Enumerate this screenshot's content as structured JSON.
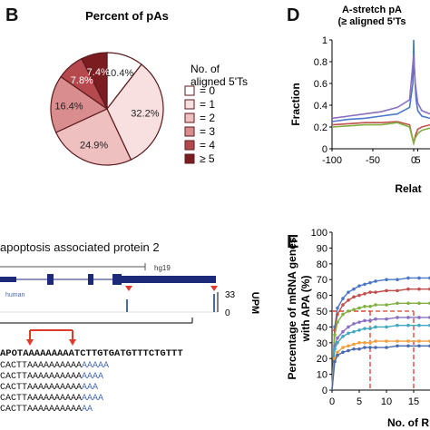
{
  "panel_letters": {
    "b": "B",
    "d": "D",
    "e": "E"
  },
  "chart_data": [
    {
      "type": "pie",
      "panel": "B",
      "title": "Percent of pAs",
      "legend_title": [
        "No. of",
        "aligned 5'Ts"
      ],
      "slices": [
        {
          "label": "= 0",
          "value": 10.4,
          "display": "10.4%",
          "color": "#ffffff"
        },
        {
          "label": "= 1",
          "value": 32.2,
          "display": "32.2%",
          "color": "#f9e0e0"
        },
        {
          "label": "= 2",
          "value": 24.9,
          "display": "24.9%",
          "color": "#efc0c0"
        },
        {
          "label": "= 3",
          "value": 16.4,
          "display": "16.4%",
          "color": "#d98d8f"
        },
        {
          "label": "= 4",
          "value": 7.8,
          "display": "7.8%",
          "color": "#b5494d"
        },
        {
          "label": "≥ 5",
          "value": 7.4,
          "display": "7.4%",
          "color": "#7b1c20"
        }
      ]
    },
    {
      "type": "line",
      "panel": "D",
      "title": [
        "A-stretch pA",
        "(≥ aligned 5'Ts"
      ],
      "ylabel": "Fraction",
      "xlabel": "Relat",
      "ylim": [
        0,
        1
      ],
      "yticks": [
        "0",
        "0.2",
        "0.4",
        "0.6",
        "0.8",
        "1"
      ],
      "xticks": [
        "-100",
        "-50",
        "0",
        "5"
      ],
      "series": [
        {
          "color": "#4a78c8",
          "x": [
            -100,
            -80,
            -60,
            -40,
            -20,
            -5,
            -1,
            0,
            1,
            3,
            5,
            10,
            20
          ],
          "y": [
            0.25,
            0.27,
            0.28,
            0.3,
            0.32,
            0.38,
            0.6,
            1.0,
            0.7,
            0.45,
            0.35,
            0.3,
            0.28
          ]
        },
        {
          "color": "#8a6fc0",
          "x": [
            -100,
            -80,
            -60,
            -40,
            -20,
            -5,
            0,
            2,
            5,
            10,
            20
          ],
          "y": [
            0.28,
            0.3,
            0.32,
            0.34,
            0.38,
            0.45,
            0.86,
            0.6,
            0.42,
            0.35,
            0.32
          ]
        },
        {
          "color": "#c0504d",
          "x": [
            -100,
            -80,
            -60,
            -40,
            -20,
            -5,
            0,
            2,
            5,
            10,
            20
          ],
          "y": [
            0.22,
            0.23,
            0.24,
            0.24,
            0.25,
            0.22,
            0.05,
            0.12,
            0.18,
            0.2,
            0.22
          ]
        },
        {
          "color": "#7fb040",
          "x": [
            -100,
            -80,
            -60,
            -40,
            -20,
            -5,
            0,
            2,
            5,
            10,
            20
          ],
          "y": [
            0.2,
            0.21,
            0.22,
            0.22,
            0.24,
            0.2,
            0.05,
            0.1,
            0.14,
            0.17,
            0.19
          ]
        }
      ]
    },
    {
      "type": "line",
      "panel": "E",
      "ylabel": [
        "Percentage of mRNA genes",
        "with APA (%)"
      ],
      "xlabel": "No. of R",
      "ylim": [
        0,
        100
      ],
      "yticks": [
        "0",
        "10",
        "20",
        "30",
        "40",
        "50",
        "60",
        "70",
        "80",
        "90",
        "100"
      ],
      "xticks": [
        "0",
        "5",
        "10",
        "15"
      ],
      "xlim": [
        0,
        18
      ],
      "series": [
        {
          "color": "#4a78c8",
          "x": [
            0,
            0.5,
            1,
            2,
            3,
            4,
            5,
            6,
            7,
            8,
            10,
            12,
            14,
            16,
            18
          ],
          "y": [
            0,
            40,
            52,
            58,
            62,
            64,
            66,
            67,
            68,
            69,
            70,
            70,
            71,
            71,
            71
          ]
        },
        {
          "color": "#c0504d",
          "x": [
            0,
            0.5,
            1,
            2,
            3,
            4,
            5,
            6,
            7,
            8,
            10,
            12,
            14,
            16,
            18
          ],
          "y": [
            0,
            38,
            48,
            54,
            57,
            59,
            60,
            61,
            62,
            62,
            63,
            63,
            64,
            64,
            64
          ]
        },
        {
          "color": "#7fb040",
          "x": [
            0,
            0.5,
            1,
            2,
            3,
            4,
            5,
            6,
            7,
            8,
            10,
            12,
            14,
            16,
            18
          ],
          "y": [
            0,
            35,
            43,
            48,
            50,
            51,
            52,
            53,
            53,
            54,
            54,
            55,
            55,
            55,
            55
          ]
        },
        {
          "color": "#8a6fc0",
          "x": [
            0,
            0.5,
            1,
            2,
            3,
            4,
            5,
            6,
            7,
            8,
            10,
            12,
            14,
            16,
            18
          ],
          "y": [
            0,
            28,
            33,
            37,
            40,
            42,
            43,
            44,
            44,
            45,
            45,
            46,
            46,
            46,
            46
          ]
        },
        {
          "color": "#40a8c0",
          "x": [
            0,
            0.5,
            1,
            2,
            3,
            4,
            5,
            6,
            7,
            8,
            10,
            12,
            14,
            16,
            18
          ],
          "y": [
            0,
            26,
            30,
            34,
            36,
            37,
            38,
            39,
            39,
            40,
            40,
            41,
            41,
            41,
            41
          ]
        },
        {
          "color": "#f0a040",
          "x": [
            0,
            0.5,
            1,
            2,
            3,
            4,
            5,
            6,
            7,
            8,
            10,
            12,
            14,
            16,
            18
          ],
          "y": [
            0,
            20,
            24,
            27,
            28,
            29,
            30,
            30,
            30,
            31,
            31,
            31,
            31,
            31,
            31
          ]
        },
        {
          "color": "#4a6ab0",
          "x": [
            0,
            0.5,
            1,
            2,
            3,
            4,
            5,
            6,
            7,
            8,
            10,
            12,
            14,
            16,
            18
          ],
          "y": [
            0,
            18,
            22,
            24,
            25,
            26,
            26,
            27,
            27,
            27,
            27,
            28,
            28,
            28,
            28
          ]
        }
      ],
      "reference_lines": [
        {
          "y": 50,
          "x_end": 7,
          "color": "#e03a2a"
        },
        {
          "y": 50,
          "x_end": 15,
          "color": "#e03a2a"
        }
      ]
    }
  ],
  "panel_c": {
    "gene_title": "apoptosis associated protein 2",
    "genome_label": "hg19",
    "track_label": "human",
    "upm_label": "UPM",
    "upm_max": "33",
    "upm_min": "0",
    "seq_main": "APOTAAAAAAAAATCTTGTGATGTTTCTGTTT",
    "reads": [
      {
        "prefix": "CACTTAAAAAAAAAA",
        "tail": "AAAAA"
      },
      {
        "prefix": "CACTTAAAAAAAAAA",
        "tail": "AAAA"
      },
      {
        "prefix": "CACTTAAAAAAAAAA",
        "tail": "AAA"
      },
      {
        "prefix": "CACTTAAAAAAAAAA",
        "tail": "AAAA"
      },
      {
        "prefix": "CACTTAAAAAAAAAA",
        "tail": "AA"
      }
    ]
  }
}
